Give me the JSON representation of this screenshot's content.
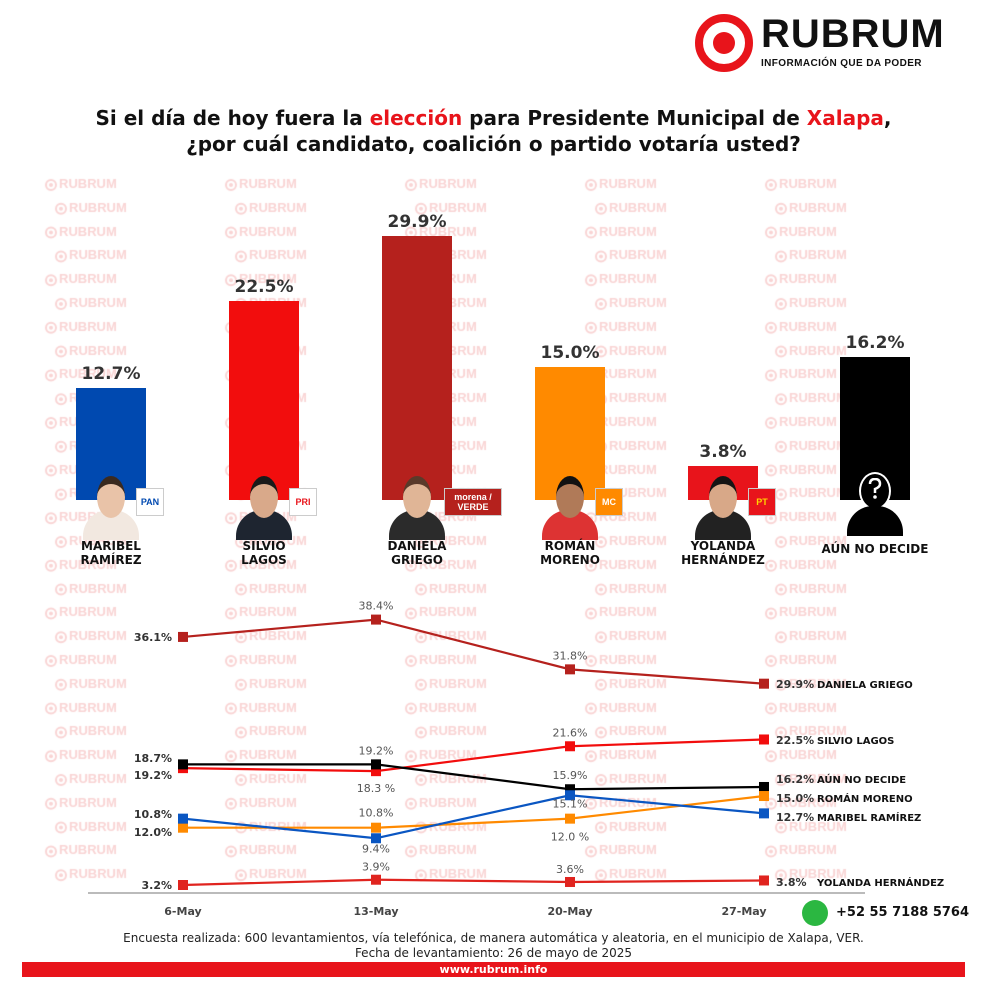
{
  "brand": {
    "name": "RUBRUM",
    "tagline": "INFORMACIÓN QUE DA PODER",
    "watermark": "RUBRUM",
    "color": "#e8141b"
  },
  "title": {
    "line1_a": "Si el día de hoy fuera la ",
    "line1_b": "elección",
    "line1_c": " para Presidente Municipal de ",
    "line1_d": "Xalapa",
    "line1_e": ",",
    "line2": "¿por cuál candidato, coalición o partido votaría usted?"
  },
  "chart_data": [
    {
      "type": "bar",
      "title": "",
      "categories": [
        "MARIBEL RAMÍREZ",
        "SILVIO LAGOS",
        "DANIELA GRIEGO",
        "ROMÁN MORENO",
        "YOLANDA HERNÁNDEZ",
        "AÚN NO DECIDE"
      ],
      "values": [
        12.7,
        22.5,
        29.9,
        15.0,
        3.8,
        16.2
      ],
      "value_labels": [
        "12.7%",
        "22.5%",
        "29.9%",
        "15.0%",
        "3.8%",
        "16.2%"
      ],
      "name_lines": [
        [
          "MARIBEL",
          "RAMÍREZ"
        ],
        [
          "SILVIO",
          "LAGOS"
        ],
        [
          "DANIELA",
          "GRIEGO"
        ],
        [
          "ROMÁN",
          "MORENO"
        ],
        [
          "YOLANDA",
          "HERNÁNDEZ"
        ],
        [
          "AÚN NO DECIDE",
          ""
        ]
      ],
      "parties": [
        "PAN",
        "PRI",
        "morena / VERDE",
        "MC",
        "PT",
        ""
      ],
      "colors": [
        "#0049b0",
        "#f20d0d",
        "#b5211d",
        "#ff8a00",
        "#e8141b",
        "#000000"
      ]
    },
    {
      "type": "line",
      "title": "",
      "categories": [
        "6-May",
        "13-May",
        "20-May",
        "27-May"
      ],
      "series": [
        {
          "name": "DANIELA GRIEGO",
          "values": [
            36.1,
            38.4,
            31.8,
            29.9
          ],
          "labels": [
            "36.1%",
            "38.4%",
            "31.8%",
            "29.9%"
          ],
          "color": "#b5211d"
        },
        {
          "name": "SILVIO LAGOS",
          "values": [
            18.7,
            18.3,
            21.6,
            22.5
          ],
          "labels": [
            "18.7%",
            "18.3 %",
            "21.6%",
            "22.5%"
          ],
          "color": "#f20d0d"
        },
        {
          "name": "AÚN NO DECIDE",
          "values": [
            19.2,
            19.2,
            15.9,
            16.2
          ],
          "labels": [
            "19.2%",
            "19.2%",
            "15.9%",
            "16.2%"
          ],
          "color": "#000000"
        },
        {
          "name": "ROMÁN MORENO",
          "values": [
            10.8,
            10.8,
            12.0,
            15.0
          ],
          "labels": [
            "10.8%",
            "10.8%",
            "12.0 %",
            "15.0%"
          ],
          "color": "#ff8a00"
        },
        {
          "name": "MARIBEL RAMÍREZ",
          "values": [
            12.0,
            9.4,
            15.1,
            12.7
          ],
          "labels": [
            "12.0%",
            "9.4%",
            "15.1%",
            "12.7%"
          ],
          "color": "#0a56c2"
        },
        {
          "name": "YOLANDA HERNÁNDEZ",
          "values": [
            3.2,
            3.9,
            3.6,
            3.8
          ],
          "labels": [
            "3.2%",
            "3.9%",
            "3.6%",
            "3.8%"
          ],
          "color": "#e0241f"
        }
      ]
    }
  ],
  "contact": {
    "phone": "+52 55 7188 5764",
    "icon": "whatsapp-icon"
  },
  "footer": {
    "line1": "Encuesta realizada: 600 levantamientos, vía telefónica, de manera automática y aleatoria, en el municipio de Xalapa, VER.",
    "line2": "Fecha de levantamiento: 26 de mayo de 2025",
    "url": "www.rubrum.info"
  }
}
